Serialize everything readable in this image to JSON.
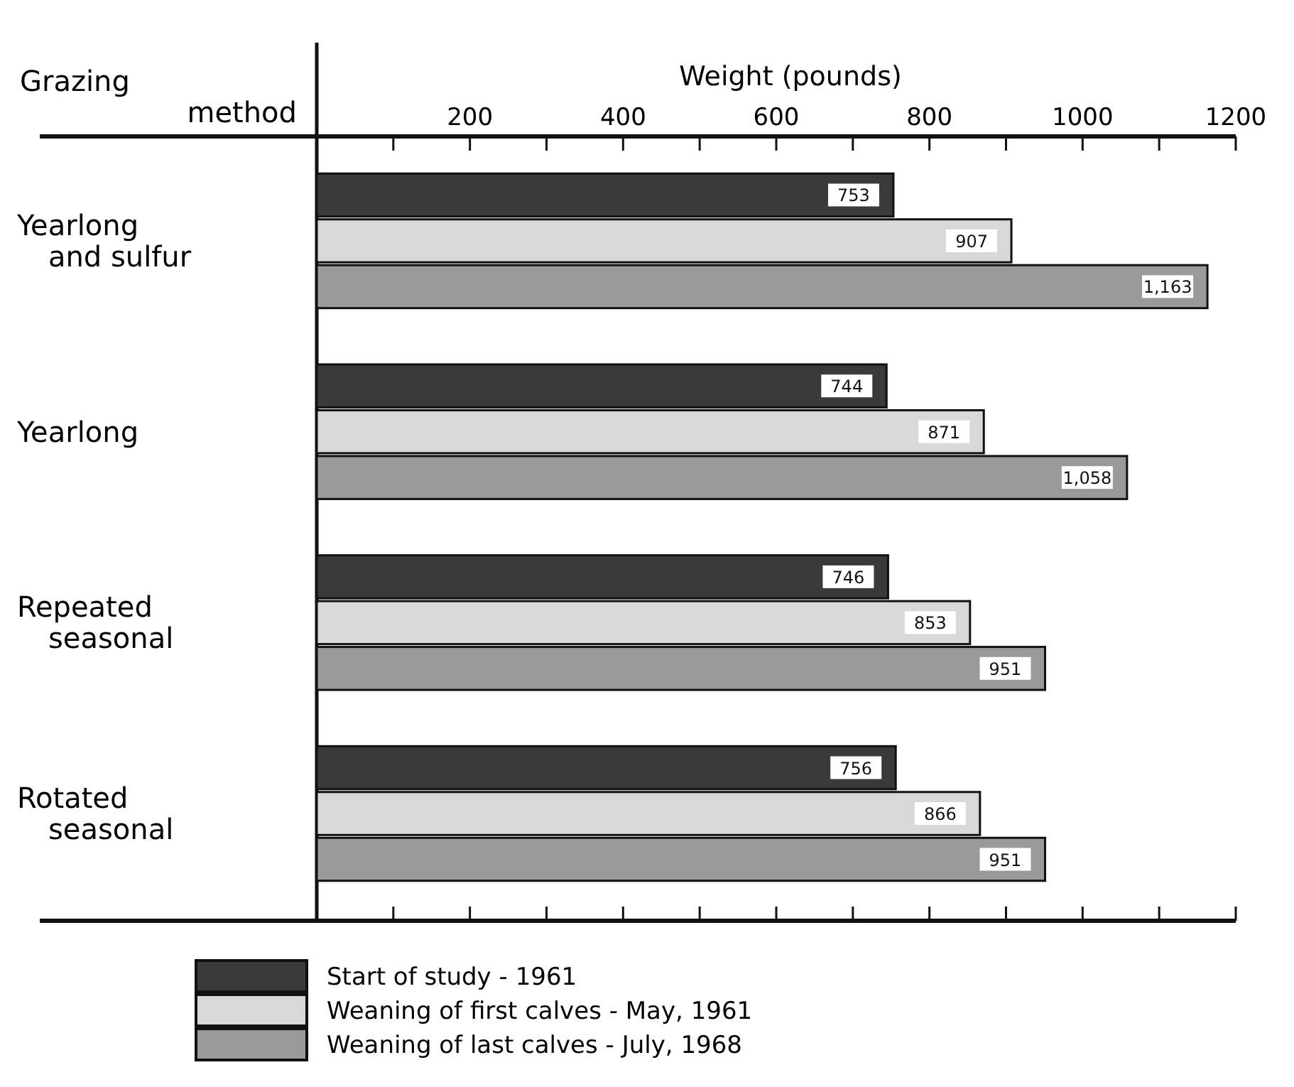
{
  "chart_data": {
    "type": "bar",
    "orientation": "horizontal",
    "xlabel": "Weight (pounds)",
    "ylabel": "Grazing\nmethod",
    "categories": [
      "Yearlong\nand sulfur",
      "Yearlong",
      "Repeated\nseasonal",
      "Rotated\nseasonal"
    ],
    "series": [
      {
        "name": "Start of study - 1961",
        "color": "#3a3a3a",
        "values": [
          753,
          744,
          746,
          756
        ],
        "value_labels": [
          "753",
          "744",
          "746",
          "756"
        ]
      },
      {
        "name": "Weaning of first calves - May, 1961",
        "color": "#d8d8d8",
        "values": [
          907,
          871,
          853,
          866
        ],
        "value_labels": [
          "907",
          "871",
          "853",
          "866"
        ]
      },
      {
        "name": "Weaning of last calves - July, 1968",
        "color": "#9a9a9a",
        "values": [
          1163,
          1058,
          951,
          951
        ],
        "value_labels": [
          "1,163",
          "1,058",
          "951",
          "951"
        ]
      }
    ],
    "xlim": [
      0,
      1200
    ],
    "xticks": [
      {
        "value": 0,
        "label": null
      },
      {
        "value": 100,
        "label": null
      },
      200,
      {
        "value": 300,
        "label": null
      },
      400,
      {
        "value": 500,
        "label": null
      },
      600,
      {
        "value": 700,
        "label": null
      },
      800,
      {
        "value": 900,
        "label": null
      },
      1000,
      {
        "value": 1100,
        "label": null
      },
      1200
    ],
    "grid": false,
    "legend": "bottom"
  }
}
